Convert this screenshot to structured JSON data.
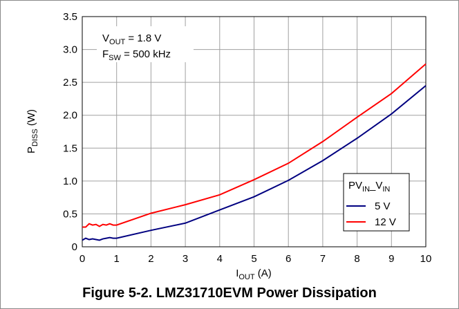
{
  "chart_data": {
    "type": "line",
    "caption": "Figure 5-2. LMZ31710EVM Power Dissipation",
    "x_label": {
      "main": "I",
      "sub": "OUT",
      "rest": " (A)"
    },
    "y_label": {
      "main": "P",
      "sub": "DISS",
      "rest": " (W)"
    },
    "annotations": [
      {
        "main": "V",
        "sub": "OUT",
        "rest": " = 1.8 V"
      },
      {
        "main": "F",
        "sub": "SW",
        "rest": " = 500 kHz"
      }
    ],
    "legend_title": {
      "main": "PV",
      "sub": "IN",
      "mid": "_V",
      "sub2": "IN"
    },
    "legend": "lower right",
    "grid": true,
    "x": [
      0,
      0.1,
      0.2,
      0.3,
      0.4,
      0.5,
      0.6,
      0.7,
      0.8,
      0.9,
      1,
      2,
      3,
      4,
      5,
      6,
      7,
      8,
      9,
      10
    ],
    "series": [
      {
        "name": "5 V",
        "color": "#000080",
        "values": [
          0.1,
          0.13,
          0.11,
          0.12,
          0.11,
          0.1,
          0.12,
          0.13,
          0.14,
          0.13,
          0.13,
          0.25,
          0.36,
          0.56,
          0.76,
          1.01,
          1.31,
          1.65,
          2.02,
          2.45
        ]
      },
      {
        "name": "12 V",
        "color": "#ff0000",
        "values": [
          0.3,
          0.3,
          0.35,
          0.33,
          0.34,
          0.31,
          0.34,
          0.33,
          0.35,
          0.33,
          0.33,
          0.51,
          0.64,
          0.79,
          1.02,
          1.27,
          1.6,
          1.97,
          2.33,
          2.78
        ]
      }
    ],
    "xlim": [
      0,
      10
    ],
    "xticks": [
      0,
      1,
      2,
      3,
      4,
      5,
      6,
      7,
      8,
      9,
      10
    ],
    "ylim": [
      0,
      3.5
    ],
    "yticks": [
      0,
      0.5,
      {
        "value": 1,
        "label": "1.0"
      },
      1.5,
      {
        "value": 2,
        "label": "2.0"
      },
      2.5,
      {
        "value": 3,
        "label": "3.0"
      },
      3.5
    ]
  }
}
